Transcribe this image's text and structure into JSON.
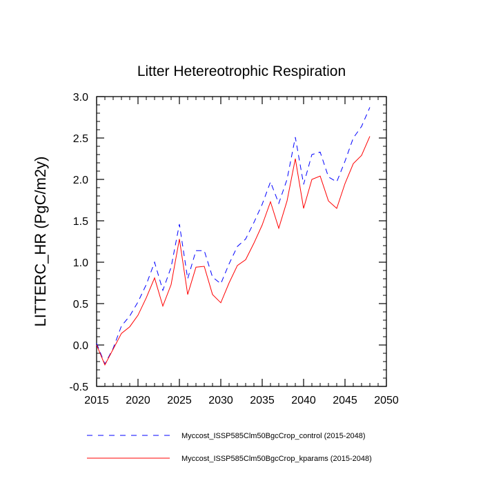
{
  "chart_data": {
    "type": "line",
    "title": "Litter Hetereotrophic Respiration",
    "xlabel": "",
    "ylabel": "LITTERC_HR  (PgC/m2y)",
    "xlim": [
      2015,
      2050
    ],
    "ylim": [
      -0.5,
      3.0
    ],
    "x_ticks": [
      2015,
      2020,
      2025,
      2030,
      2035,
      2040,
      2045,
      2050
    ],
    "y_ticks": [
      -0.5,
      0.0,
      0.5,
      1.0,
      1.5,
      2.0,
      2.5,
      3.0
    ],
    "x_tick_labels": [
      "2015",
      "2020",
      "2025",
      "2030",
      "2035",
      "2040",
      "2045",
      "2050"
    ],
    "y_tick_labels": [
      "-0.5",
      "0.0",
      "0.5",
      "1.0",
      "1.5",
      "2.0",
      "2.5",
      "3.0"
    ],
    "grid": false,
    "legend_position": "bottom",
    "x": [
      2015,
      2016,
      2017,
      2018,
      2019,
      2020,
      2021,
      2022,
      2023,
      2024,
      2025,
      2026,
      2027,
      2028,
      2029,
      2030,
      2031,
      2032,
      2033,
      2034,
      2035,
      2036,
      2037,
      2038,
      2039,
      2040,
      2041,
      2042,
      2043,
      2044,
      2045,
      2046,
      2047,
      2048
    ],
    "series": [
      {
        "name": "Myccost_ISSP585Clm50BgcCrop_control (2015-2048)",
        "color": "#0000ff",
        "dash": "dashed",
        "values": [
          0.02,
          -0.23,
          -0.04,
          0.23,
          0.35,
          0.52,
          0.73,
          1.0,
          0.66,
          0.94,
          1.46,
          0.8,
          1.14,
          1.14,
          0.82,
          0.74,
          0.98,
          1.19,
          1.28,
          1.48,
          1.7,
          1.97,
          1.71,
          2.0,
          2.51,
          1.94,
          2.3,
          2.33,
          2.03,
          1.97,
          2.22,
          2.5,
          2.64,
          2.87
        ]
      },
      {
        "name": "Myccost_ISSP585Clm50BgcCrop_kparams (2015-2048)",
        "color": "#ff0000",
        "dash": "solid",
        "values": [
          0.0,
          -0.24,
          -0.05,
          0.14,
          0.22,
          0.36,
          0.57,
          0.81,
          0.47,
          0.73,
          1.28,
          0.61,
          0.94,
          0.95,
          0.61,
          0.51,
          0.75,
          0.96,
          1.03,
          1.23,
          1.45,
          1.73,
          1.41,
          1.74,
          2.25,
          1.65,
          2.0,
          2.04,
          1.74,
          1.65,
          1.95,
          2.19,
          2.29,
          2.52
        ]
      }
    ]
  }
}
